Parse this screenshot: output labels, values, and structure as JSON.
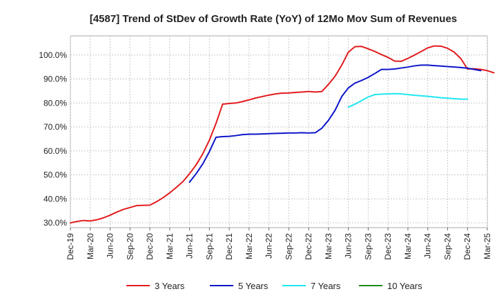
{
  "chart_data": {
    "type": "line",
    "title": "[4587]  Trend of StDev of Growth Rate (YoY) of 12Mo Mov Sum of Revenues",
    "xlabel": "",
    "ylabel": "",
    "ylim": [
      28,
      108
    ],
    "yticks": [
      30,
      40,
      50,
      60,
      70,
      80,
      90,
      100
    ],
    "ytick_labels": [
      "30.0%",
      "40.0%",
      "50.0%",
      "60.0%",
      "70.0%",
      "80.0%",
      "90.0%",
      "100.0%"
    ],
    "x_tick_labels": [
      "Dec-19",
      "Mar-20",
      "Jun-20",
      "Sep-20",
      "Dec-20",
      "Mar-21",
      "Jun-21",
      "Sep-21",
      "Dec-21",
      "Mar-22",
      "Jun-22",
      "Sep-22",
      "Dec-22",
      "Mar-23",
      "Jun-23",
      "Sep-23",
      "Dec-23",
      "Mar-24",
      "Jun-24",
      "Sep-24",
      "Dec-24",
      "Mar-25"
    ],
    "x_start": "Dec-19",
    "x_unit": "months since Dec-19",
    "grid": true,
    "legend_position": "bottom",
    "series": [
      {
        "name": "3 Years",
        "color": "#e31a1c",
        "points": [
          [
            0,
            30.0
          ],
          [
            1,
            30.6
          ],
          [
            2,
            31.0
          ],
          [
            3,
            30.8
          ],
          [
            4,
            31.3
          ],
          [
            5,
            32.1
          ],
          [
            6,
            33.2
          ],
          [
            7,
            34.5
          ],
          [
            8,
            35.6
          ],
          [
            9,
            36.4
          ],
          [
            10,
            37.2
          ],
          [
            11,
            37.3
          ],
          [
            12,
            37.4
          ],
          [
            13,
            38.8
          ],
          [
            14,
            40.5
          ],
          [
            15,
            42.5
          ],
          [
            16,
            44.8
          ],
          [
            17,
            47.2
          ],
          [
            18,
            50.5
          ],
          [
            19,
            54.2
          ],
          [
            20,
            58.8
          ],
          [
            21,
            64.5
          ],
          [
            22,
            71.5
          ],
          [
            23,
            79.5
          ],
          [
            24,
            79.8
          ],
          [
            25,
            80.0
          ],
          [
            26,
            80.6
          ],
          [
            27,
            81.3
          ],
          [
            28,
            82.1
          ],
          [
            29,
            82.7
          ],
          [
            30,
            83.3
          ],
          [
            31,
            83.8
          ],
          [
            32,
            84.1
          ],
          [
            33,
            84.2
          ],
          [
            34,
            84.4
          ],
          [
            35,
            84.6
          ],
          [
            36,
            84.8
          ],
          [
            37,
            84.6
          ],
          [
            38,
            84.8
          ],
          [
            39,
            87.8
          ],
          [
            40,
            91.2
          ],
          [
            41,
            95.8
          ],
          [
            42,
            101.2
          ],
          [
            43,
            103.5
          ],
          [
            44,
            103.6
          ],
          [
            45,
            102.6
          ],
          [
            46,
            101.5
          ],
          [
            47,
            100.2
          ],
          [
            48,
            99.0
          ],
          [
            49,
            97.5
          ],
          [
            50,
            97.4
          ],
          [
            51,
            98.6
          ],
          [
            52,
            100.0
          ],
          [
            53,
            101.5
          ],
          [
            54,
            103.0
          ],
          [
            55,
            103.8
          ],
          [
            56,
            103.7
          ],
          [
            57,
            102.8
          ],
          [
            58,
            101.2
          ],
          [
            59,
            98.5
          ],
          [
            60,
            94.2
          ],
          [
            61,
            94.3
          ],
          [
            62,
            94.0
          ],
          [
            63,
            93.5
          ],
          [
            64,
            92.6
          ]
        ]
      },
      {
        "name": "5 Years",
        "color": "#0a14c8",
        "points": [
          [
            18,
            47.0
          ],
          [
            19,
            50.5
          ],
          [
            20,
            54.6
          ],
          [
            21,
            59.7
          ],
          [
            22,
            65.7
          ],
          [
            23,
            66.0
          ],
          [
            24,
            66.1
          ],
          [
            25,
            66.4
          ],
          [
            26,
            66.8
          ],
          [
            27,
            67.0
          ],
          [
            28,
            67.0
          ],
          [
            29,
            67.1
          ],
          [
            30,
            67.2
          ],
          [
            31,
            67.3
          ],
          [
            32,
            67.4
          ],
          [
            33,
            67.5
          ],
          [
            34,
            67.5
          ],
          [
            35,
            67.6
          ],
          [
            36,
            67.5
          ],
          [
            37,
            67.6
          ],
          [
            38,
            69.5
          ],
          [
            39,
            72.8
          ],
          [
            40,
            77.0
          ],
          [
            41,
            82.7
          ],
          [
            42,
            86.3
          ],
          [
            43,
            88.3
          ],
          [
            44,
            89.4
          ],
          [
            45,
            90.7
          ],
          [
            46,
            92.3
          ],
          [
            47,
            94.0
          ],
          [
            48,
            94.0
          ],
          [
            49,
            94.2
          ],
          [
            50,
            94.6
          ],
          [
            51,
            95.0
          ],
          [
            52,
            95.5
          ],
          [
            53,
            95.8
          ],
          [
            54,
            95.8
          ],
          [
            55,
            95.6
          ],
          [
            56,
            95.4
          ],
          [
            57,
            95.2
          ],
          [
            58,
            95.0
          ],
          [
            59,
            94.8
          ],
          [
            60,
            94.5
          ],
          [
            61,
            94.0
          ],
          [
            62,
            93.5
          ]
        ]
      },
      {
        "name": "7 Years",
        "color": "#1ee6f0",
        "points": [
          [
            42,
            78.3
          ],
          [
            43,
            79.5
          ],
          [
            44,
            81.0
          ],
          [
            45,
            82.5
          ],
          [
            46,
            83.5
          ],
          [
            47,
            83.7
          ],
          [
            48,
            83.8
          ],
          [
            49,
            83.9
          ],
          [
            50,
            83.8
          ],
          [
            51,
            83.5
          ],
          [
            52,
            83.2
          ],
          [
            53,
            83.0
          ],
          [
            54,
            82.8
          ],
          [
            55,
            82.5
          ],
          [
            56,
            82.2
          ],
          [
            57,
            82.0
          ],
          [
            58,
            81.8
          ],
          [
            59,
            81.6
          ],
          [
            60,
            81.6
          ]
        ]
      },
      {
        "name": "10 Years",
        "color": "#1a8a1a",
        "points": []
      }
    ]
  }
}
